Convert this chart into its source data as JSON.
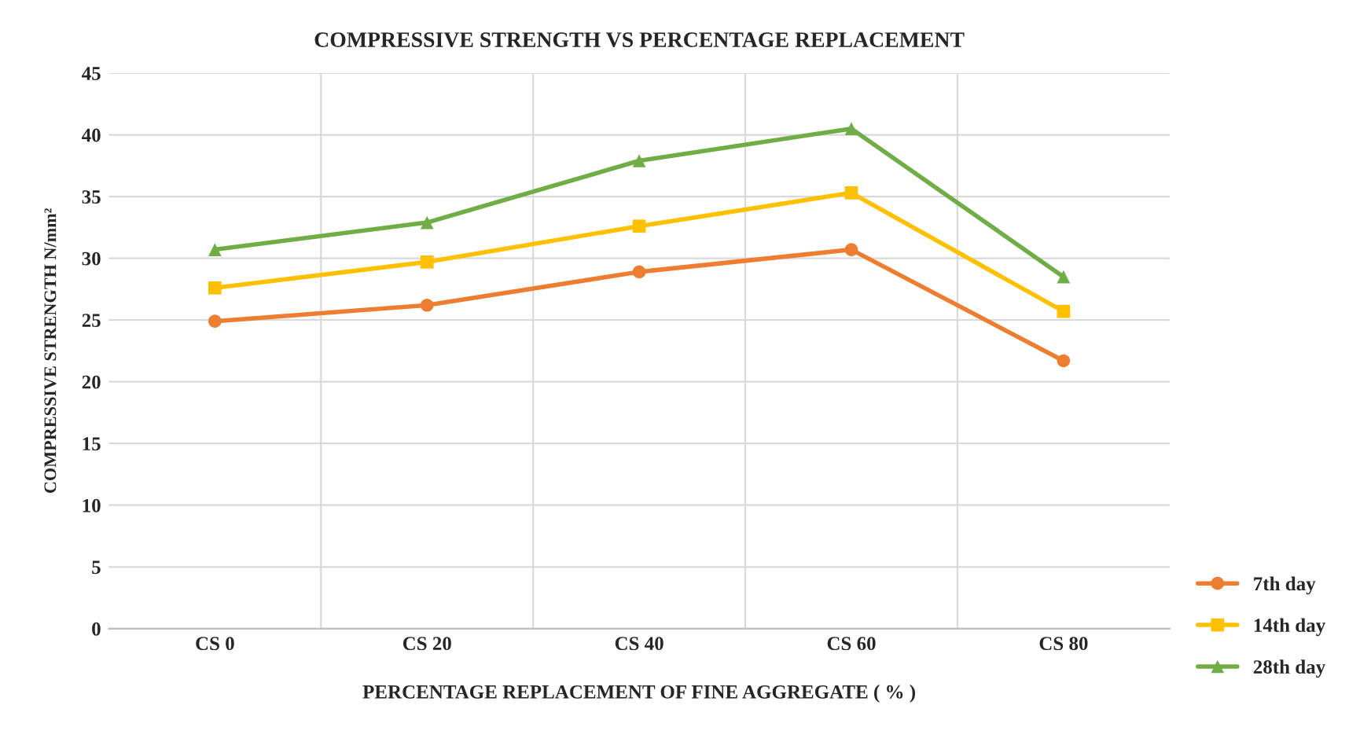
{
  "chart_data": {
    "type": "line",
    "title": "COMPRESSIVE STRENGTH VS PERCENTAGE REPLACEMENT",
    "xlabel": "PERCENTAGE REPLACEMENT OF FINE AGGREGATE ( % )",
    "ylabel": "COMPRESSIVE STRENGTH N/mm²",
    "categories": [
      "CS 0",
      "CS 20",
      "CS 40",
      "CS 60",
      "CS 80"
    ],
    "series": [
      {
        "name": "7th day",
        "color": "#ed7d31",
        "marker": "circle",
        "values": [
          24.9,
          26.2,
          28.9,
          30.7,
          21.7
        ]
      },
      {
        "name": "14th day",
        "color": "#ffc000",
        "marker": "square",
        "values": [
          27.6,
          29.7,
          32.6,
          35.3,
          25.7
        ]
      },
      {
        "name": "28th day",
        "color": "#70ad47",
        "marker": "triangle",
        "values": [
          30.7,
          32.9,
          37.9,
          40.5,
          28.5
        ]
      }
    ],
    "ylim": [
      0,
      45
    ],
    "yticks": [
      0,
      5,
      10,
      15,
      20,
      25,
      30,
      35,
      40,
      45
    ],
    "grid": true,
    "legend": "bottom right"
  }
}
